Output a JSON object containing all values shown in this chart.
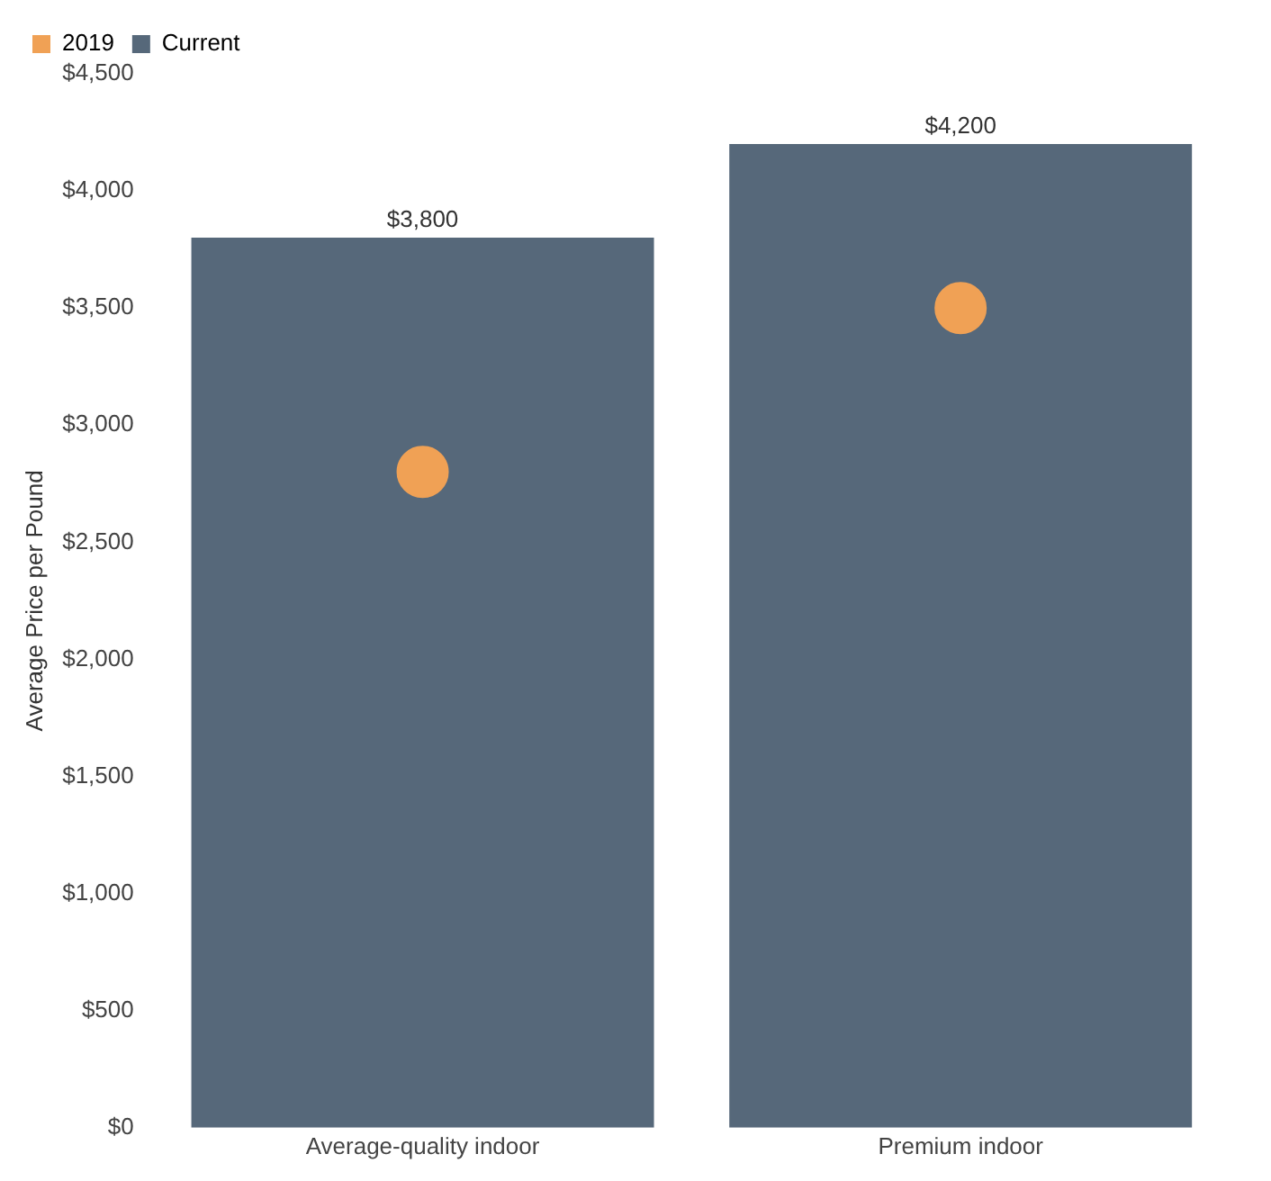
{
  "chart_data": {
    "type": "bar",
    "ylabel": "Average Price per Pound",
    "categories": [
      "Average-quality indoor",
      "Premium indoor"
    ],
    "series": [
      {
        "name": "2019",
        "type": "scatter",
        "x": [
          "Average-quality indoor",
          "Premium indoor"
        ],
        "values": [
          2800,
          3500
        ],
        "color": "#f0a155"
      },
      {
        "name": "Current",
        "values": [
          3800,
          4200
        ],
        "color": "#56687a",
        "value_labels": [
          "$3,800",
          "$4,200"
        ]
      }
    ],
    "ylim": [
      0,
      4500
    ],
    "yticks": [
      {
        "value": 0,
        "label": "$0"
      },
      {
        "value": 500,
        "label": "$500"
      },
      {
        "value": 1000,
        "label": "$1,000"
      },
      {
        "value": 1500,
        "label": "$1,500"
      },
      {
        "value": 2000,
        "label": "$2,000"
      },
      {
        "value": 2500,
        "label": "$2,500"
      },
      {
        "value": 3000,
        "label": "$3,000"
      },
      {
        "value": 3500,
        "label": "$3,500"
      },
      {
        "value": 4000,
        "label": "$4,000"
      },
      {
        "value": 4500,
        "label": "$4,500"
      }
    ],
    "grid": false,
    "legend": "top left",
    "marker": "circle"
  }
}
